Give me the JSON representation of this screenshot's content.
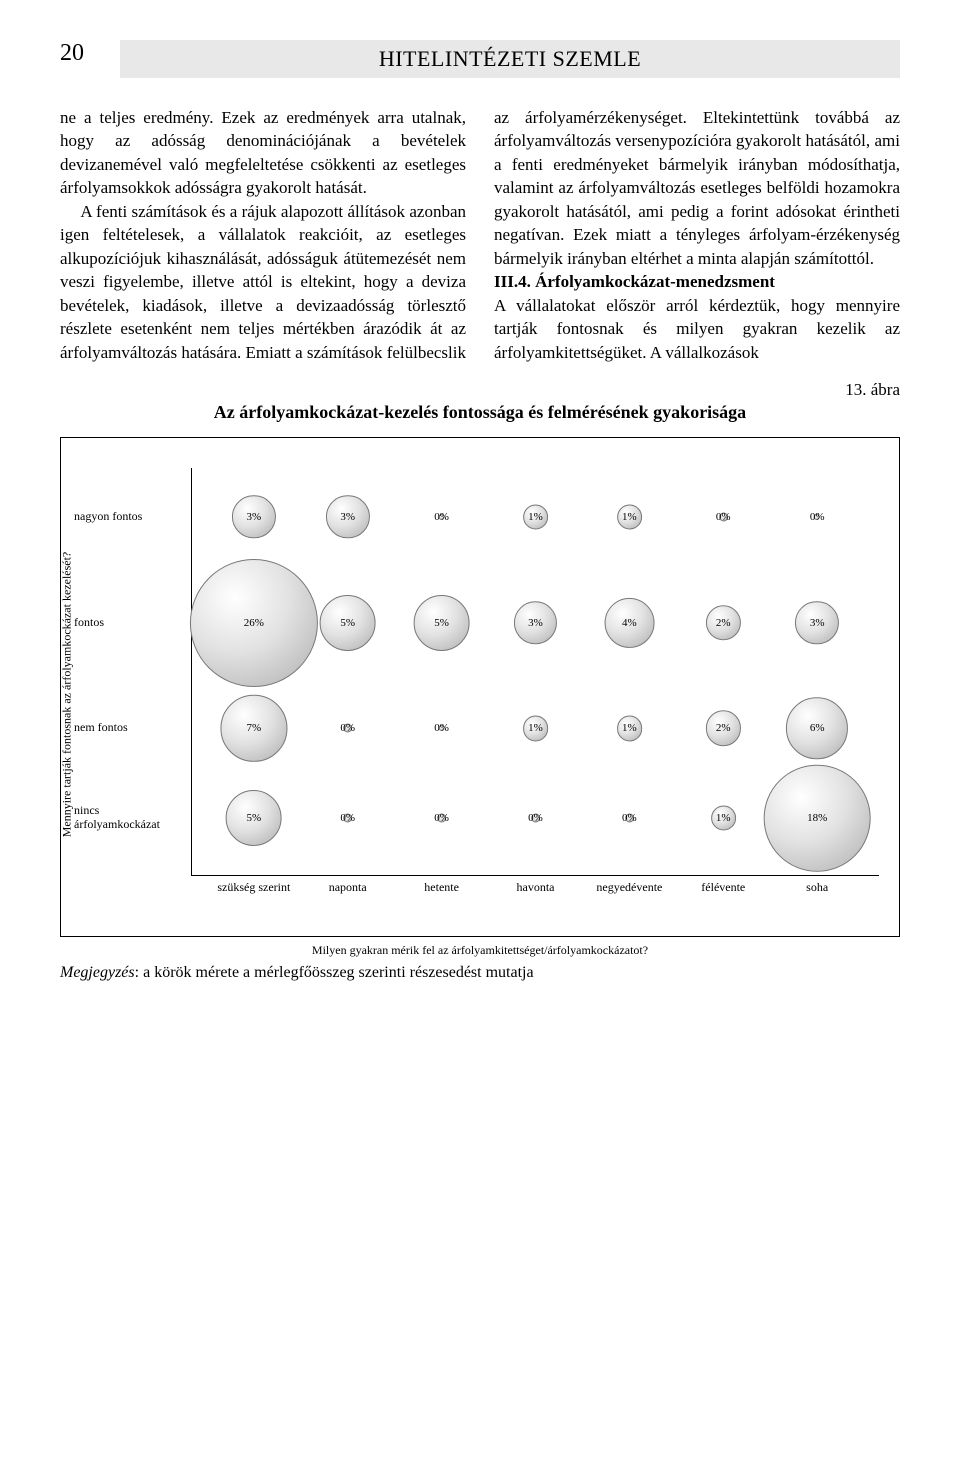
{
  "page_number": "20",
  "journal_title": "HITELINTÉZETI SZEMLE",
  "body": {
    "p1": "ne a teljes eredmény. Ezek az eredmények arra utalnak, hogy az adósság denominációjának a bevételek devizanemével való megfeleltetése csökkenti az esetleges árfolyamsokkok adósságra gyakorolt hatását.",
    "p2": "A fenti számítások és a rájuk alapozott állítások azonban igen feltételesek, a vállalatok reakcióit, az esetleges alkupozíciójuk kihasználását, adósságuk átütemezését nem veszi figyelembe, illetve attól is eltekint, hogy a deviza bevételek, kiadások, illetve a devizaadósság törlesztő részlete esetenként nem teljes mértékben árazódik át az árfolyamváltozás hatására. Emiatt a számítások felülbecslik az árfolyamérzékenységet. Eltekintettünk továbbá az árfolyamváltozás versenypozícióra gyakorolt hatásától, ami a fenti eredményeket bármelyik irányban módosíthatja, valamint az árfolyamváltozás esetleges belföldi hozamokra gyakorolt hatásától, ami pedig a forint adósokat érintheti negatívan. Ezek miatt a tényleges árfolyam-érzékenység bármelyik irányban eltérhet a minta alapján számítottól.",
    "section_heading": "III.4. Árfolyamkockázat-menedzsment",
    "p3": "A vállalatokat először arról kérdeztük, hogy mennyire tartják fontosnak és milyen gyakran kezelik az árfolyamkitettségüket. A vállalkozások"
  },
  "figure": {
    "label": "13. ábra",
    "title": "Az árfolyamkockázat-kezelés fontossága és felmérésének gyakorisága",
    "y_axis_label": "Mennyire tartják fontosnak az árfolyamkockázat kezelését?",
    "x_axis_label": "Milyen gyakran mérik fel az árfolyamkitettséget/árfolyamkockázatot?",
    "y_categories": [
      "nagyon fontos",
      "fontos",
      "nem fontos",
      "nincs árfolyamkockázat"
    ],
    "x_categories": [
      "szükség szerint",
      "naponta",
      "hetente",
      "havonta",
      "negyedévente",
      "félévente",
      "soha"
    ],
    "bubbles": [
      [
        {
          "v": 3
        },
        {
          "v": 3
        },
        {
          "v": 0,
          "tiny": true
        },
        {
          "v": 1
        },
        {
          "v": 1
        },
        {
          "v": 0
        },
        {
          "v": 0,
          "tiny": true
        }
      ],
      [
        {
          "v": 26
        },
        {
          "v": 5
        },
        {
          "v": 5
        },
        {
          "v": 3
        },
        {
          "v": 4
        },
        {
          "v": 2
        },
        {
          "v": 3
        }
      ],
      [
        {
          "v": 7
        },
        {
          "v": 0
        },
        {
          "v": 0,
          "tiny": true
        },
        {
          "v": 1
        },
        {
          "v": 1
        },
        {
          "v": 2
        },
        {
          "v": 6
        }
      ],
      [
        {
          "v": 5
        },
        {
          "v": 0
        },
        {
          "v": 0
        },
        {
          "v": 0
        },
        {
          "v": 0
        },
        {
          "v": 1
        },
        {
          "v": 18
        }
      ]
    ],
    "bubble_fill_light": "#ffffff",
    "bubble_fill_dark": "#aeaeae",
    "bubble_border": "#777777",
    "label_fontsize": 11,
    "axis_fontsize": 12
  },
  "footnote_prefix": "Megjegyzés",
  "footnote_text": ": a körök mérete a mérlegfőösszeg szerinti részesedést mutatja"
}
